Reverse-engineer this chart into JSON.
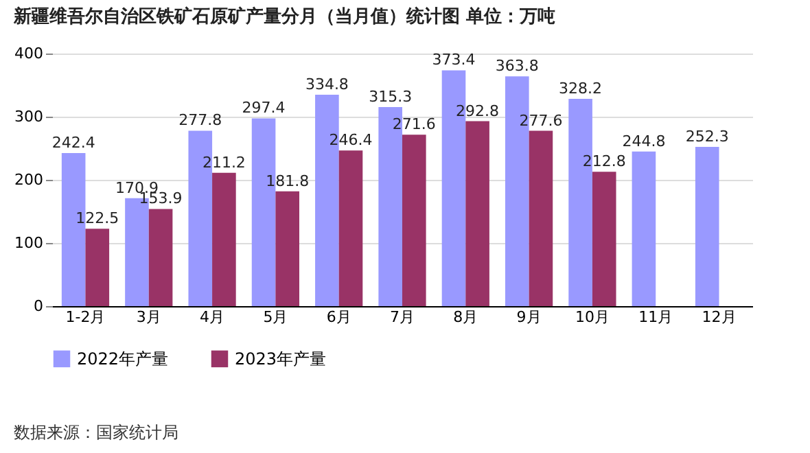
{
  "chart_data": {
    "type": "bar",
    "title": "新疆维吾尔自治区铁矿石原矿产量分月（当月值）统计图 单位：万吨",
    "categories": [
      "1-2月",
      "3月",
      "4月",
      "5月",
      "6月",
      "7月",
      "8月",
      "9月",
      "10月",
      "11月",
      "12月"
    ],
    "series": [
      {
        "name": "2022年产量",
        "color": "#9999ff",
        "values": [
          242.4,
          170.9,
          277.8,
          297.4,
          334.8,
          315.3,
          373.4,
          363.8,
          328.2,
          244.8,
          252.3
        ]
      },
      {
        "name": "2023年产量",
        "color": "#993366",
        "values": [
          122.5,
          153.9,
          211.2,
          181.8,
          246.4,
          271.6,
          292.8,
          277.6,
          212.8,
          null,
          null
        ]
      }
    ],
    "ylim": [
      0,
      400
    ],
    "yticks": [
      0,
      100,
      200,
      300,
      400
    ],
    "grid": "y",
    "legend": "bottom",
    "data_labels": true,
    "annotations": [
      "数据来源：国家统计局"
    ]
  }
}
